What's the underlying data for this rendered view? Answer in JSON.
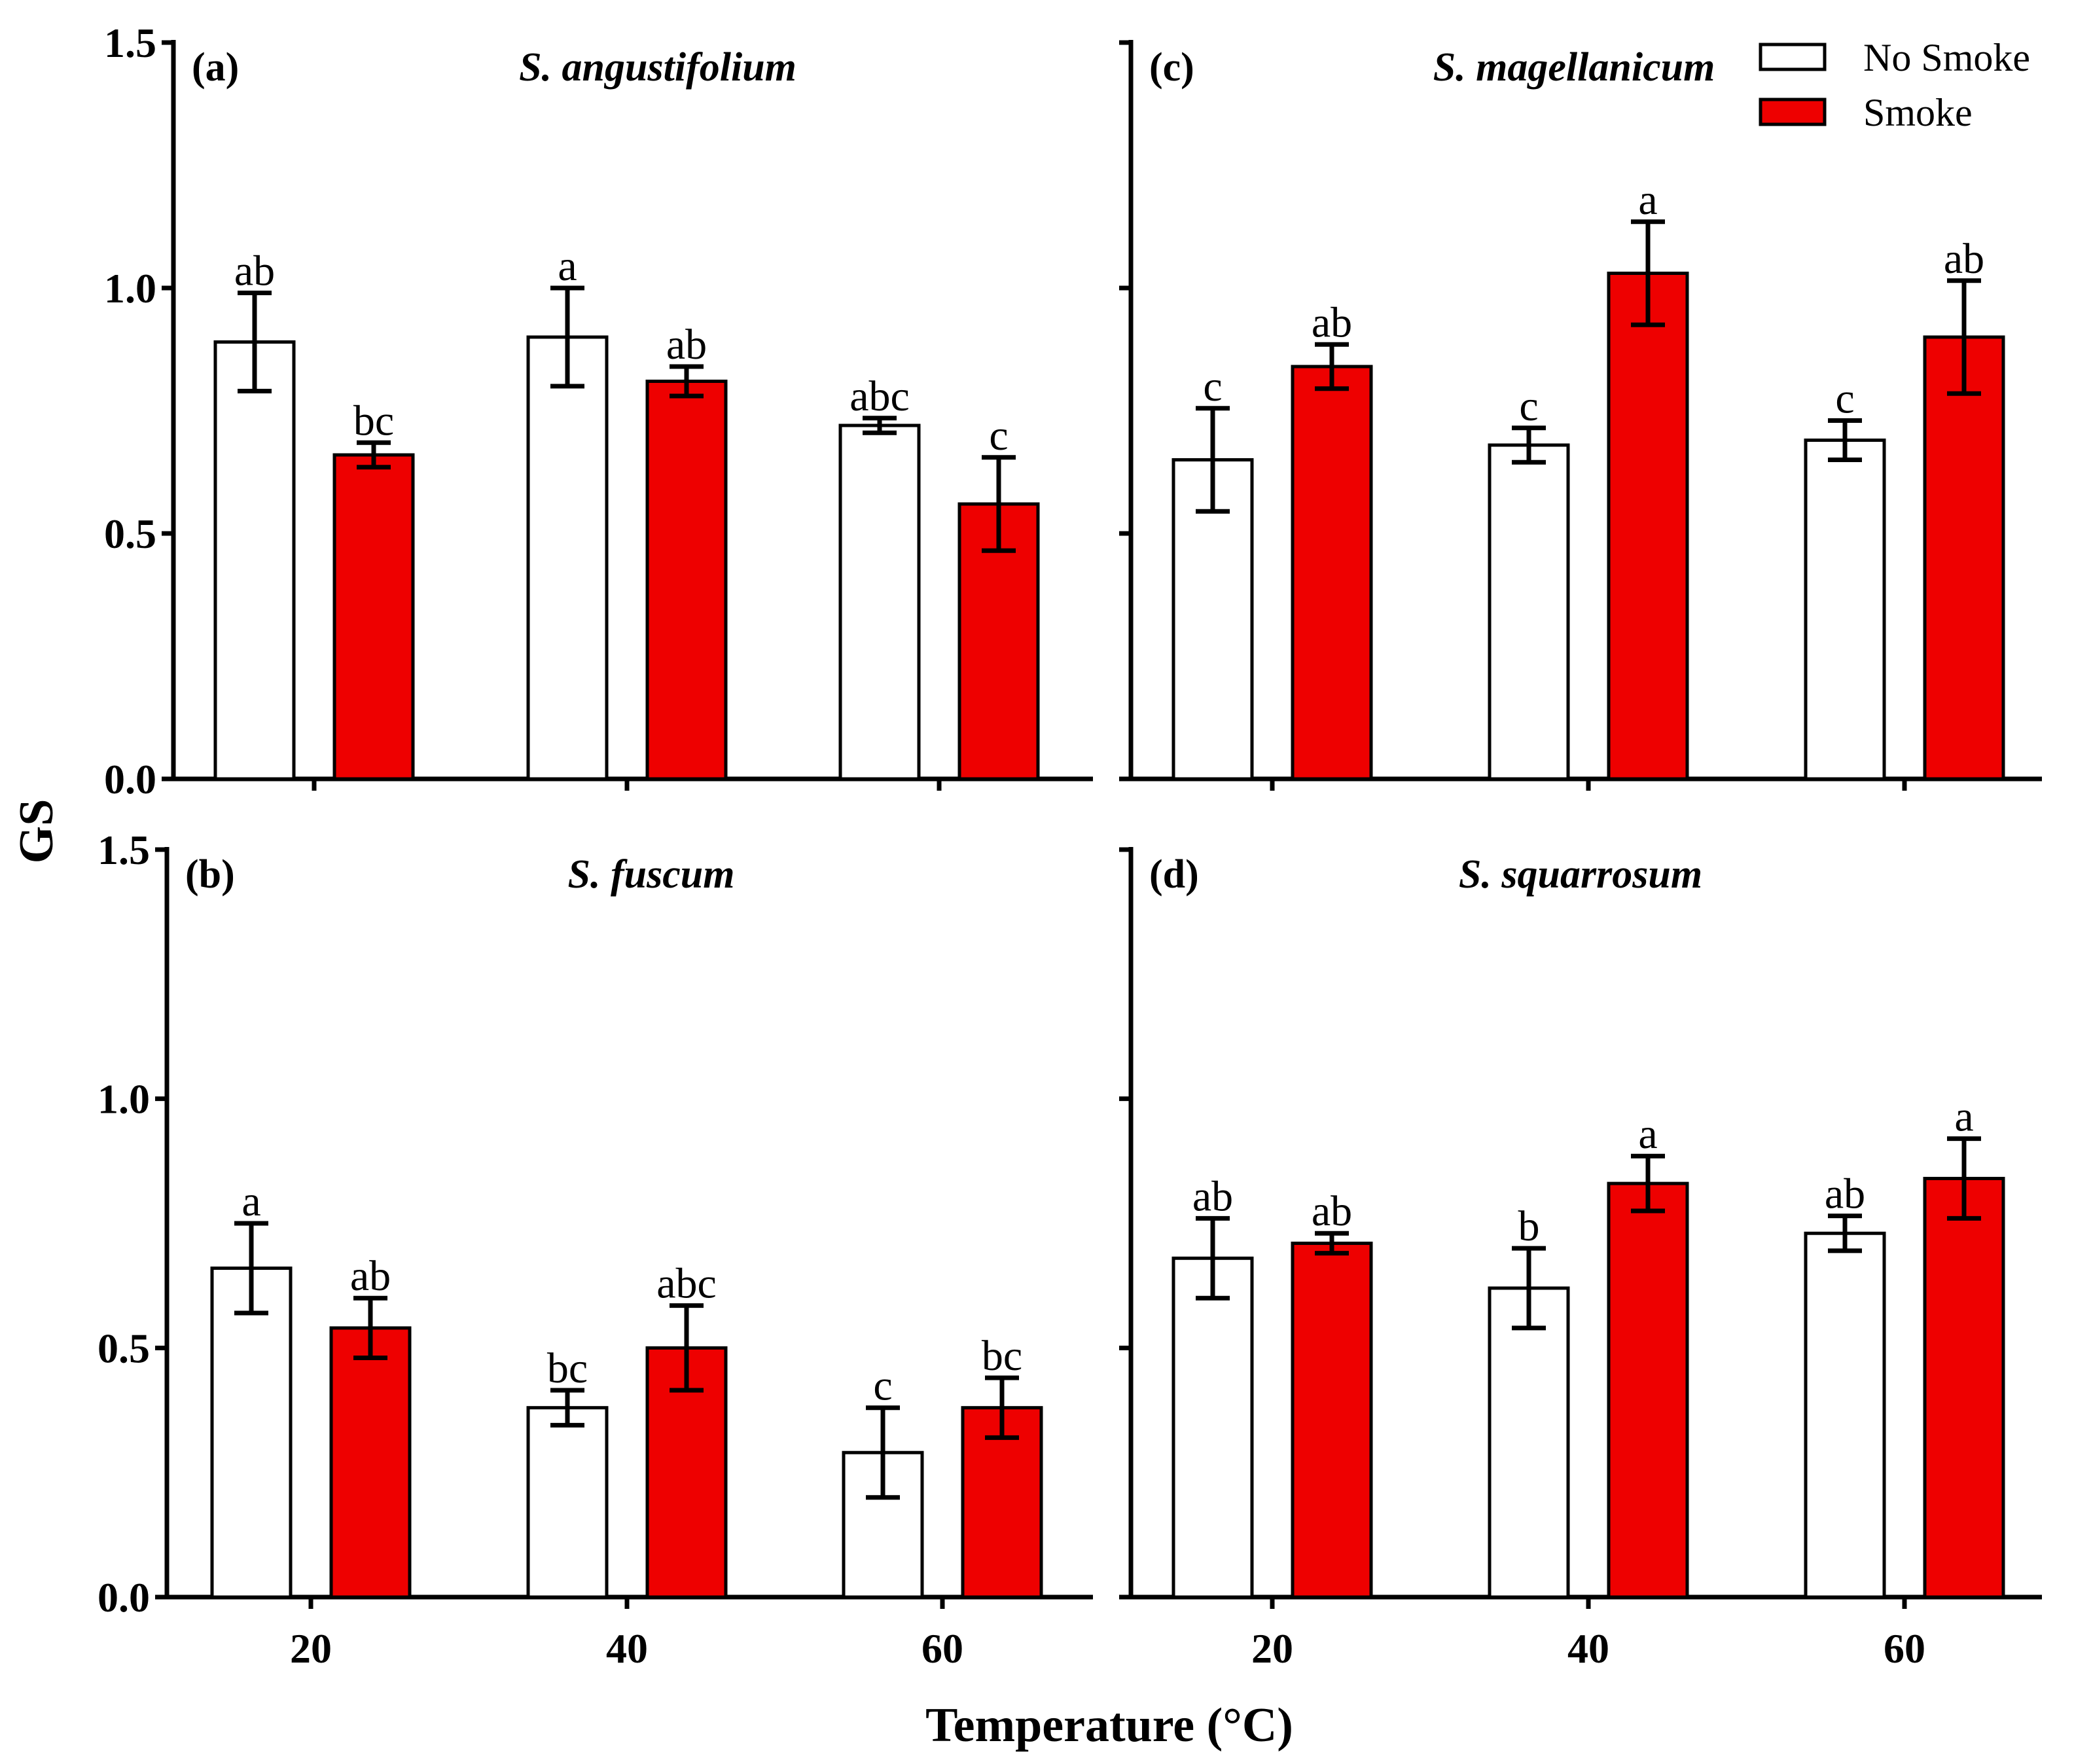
{
  "chart_data": [
    {
      "type": "bar",
      "panel": "(a)",
      "title": "S. angustifolium",
      "categories": [
        "20",
        "40",
        "60"
      ],
      "series": [
        {
          "name": "No Smoke",
          "color": "#ffffff",
          "values": [
            0.89,
            0.9,
            0.72
          ],
          "errors": [
            0.1,
            0.1,
            0.015
          ],
          "labels": [
            "ab",
            "a",
            "abc"
          ]
        },
        {
          "name": "Smoke",
          "color": "#ee0000",
          "values": [
            0.66,
            0.81,
            0.56
          ],
          "errors": [
            0.025,
            0.03,
            0.095
          ],
          "labels": [
            "bc",
            "ab",
            "c"
          ]
        }
      ],
      "ylim": [
        0.0,
        1.5
      ],
      "yticks": [
        "0.0",
        "0.5",
        "1.0",
        "1.5"
      ],
      "show_ytick_labels": true,
      "show_xtick_labels": false
    },
    {
      "type": "bar",
      "panel": "(c)",
      "title": "S. magellanicum",
      "categories": [
        "20",
        "40",
        "60"
      ],
      "series": [
        {
          "name": "No Smoke",
          "color": "#ffffff",
          "values": [
            0.65,
            0.68,
            0.69
          ],
          "errors": [
            0.105,
            0.035,
            0.04
          ],
          "labels": [
            "c",
            "c",
            "c"
          ]
        },
        {
          "name": "Smoke",
          "color": "#ee0000",
          "values": [
            0.84,
            1.03,
            0.9
          ],
          "errors": [
            0.045,
            0.105,
            0.115
          ],
          "labels": [
            "ab",
            "a",
            "ab"
          ]
        }
      ],
      "ylim": [
        0.0,
        1.5
      ],
      "yticks": [
        "0.0",
        "0.5",
        "1.0",
        "1.5"
      ],
      "show_ytick_labels": false,
      "show_xtick_labels": false
    },
    {
      "type": "bar",
      "panel": "(b)",
      "title": "S. fuscum",
      "categories": [
        "20",
        "40",
        "60"
      ],
      "series": [
        {
          "name": "No Smoke",
          "color": "#ffffff",
          "values": [
            0.66,
            0.38,
            0.29
          ],
          "errors": [
            0.09,
            0.035,
            0.09
          ],
          "labels": [
            "a",
            "bc",
            "c"
          ]
        },
        {
          "name": "Smoke",
          "color": "#ee0000",
          "values": [
            0.54,
            0.5,
            0.38
          ],
          "errors": [
            0.06,
            0.085,
            0.06
          ],
          "labels": [
            "ab",
            "abc",
            "bc"
          ]
        }
      ],
      "ylim": [
        0.0,
        1.5
      ],
      "yticks": [
        "0.0",
        "0.5",
        "1.0",
        "1.5"
      ],
      "show_ytick_labels": true,
      "show_xtick_labels": true
    },
    {
      "type": "bar",
      "panel": "(d)",
      "title": "S. squarrosum",
      "categories": [
        "20",
        "40",
        "60"
      ],
      "series": [
        {
          "name": "No Smoke",
          "color": "#ffffff",
          "values": [
            0.68,
            0.62,
            0.73
          ],
          "errors": [
            0.08,
            0.08,
            0.035
          ],
          "labels": [
            "ab",
            "b",
            "ab"
          ]
        },
        {
          "name": "Smoke",
          "color": "#ee0000",
          "values": [
            0.71,
            0.83,
            0.84
          ],
          "errors": [
            0.02,
            0.055,
            0.08
          ],
          "labels": [
            "ab",
            "a",
            "a"
          ]
        }
      ],
      "ylim": [
        0.0,
        1.5
      ],
      "yticks": [
        "0.0",
        "0.5",
        "1.0",
        "1.5"
      ],
      "show_ytick_labels": false,
      "show_xtick_labels": true
    }
  ],
  "ylabel": "GS",
  "xlabel": "Temperature (°C)",
  "legend": [
    {
      "name": "No Smoke",
      "color": "#ffffff"
    },
    {
      "name": "Smoke",
      "color": "#ee0000"
    }
  ]
}
